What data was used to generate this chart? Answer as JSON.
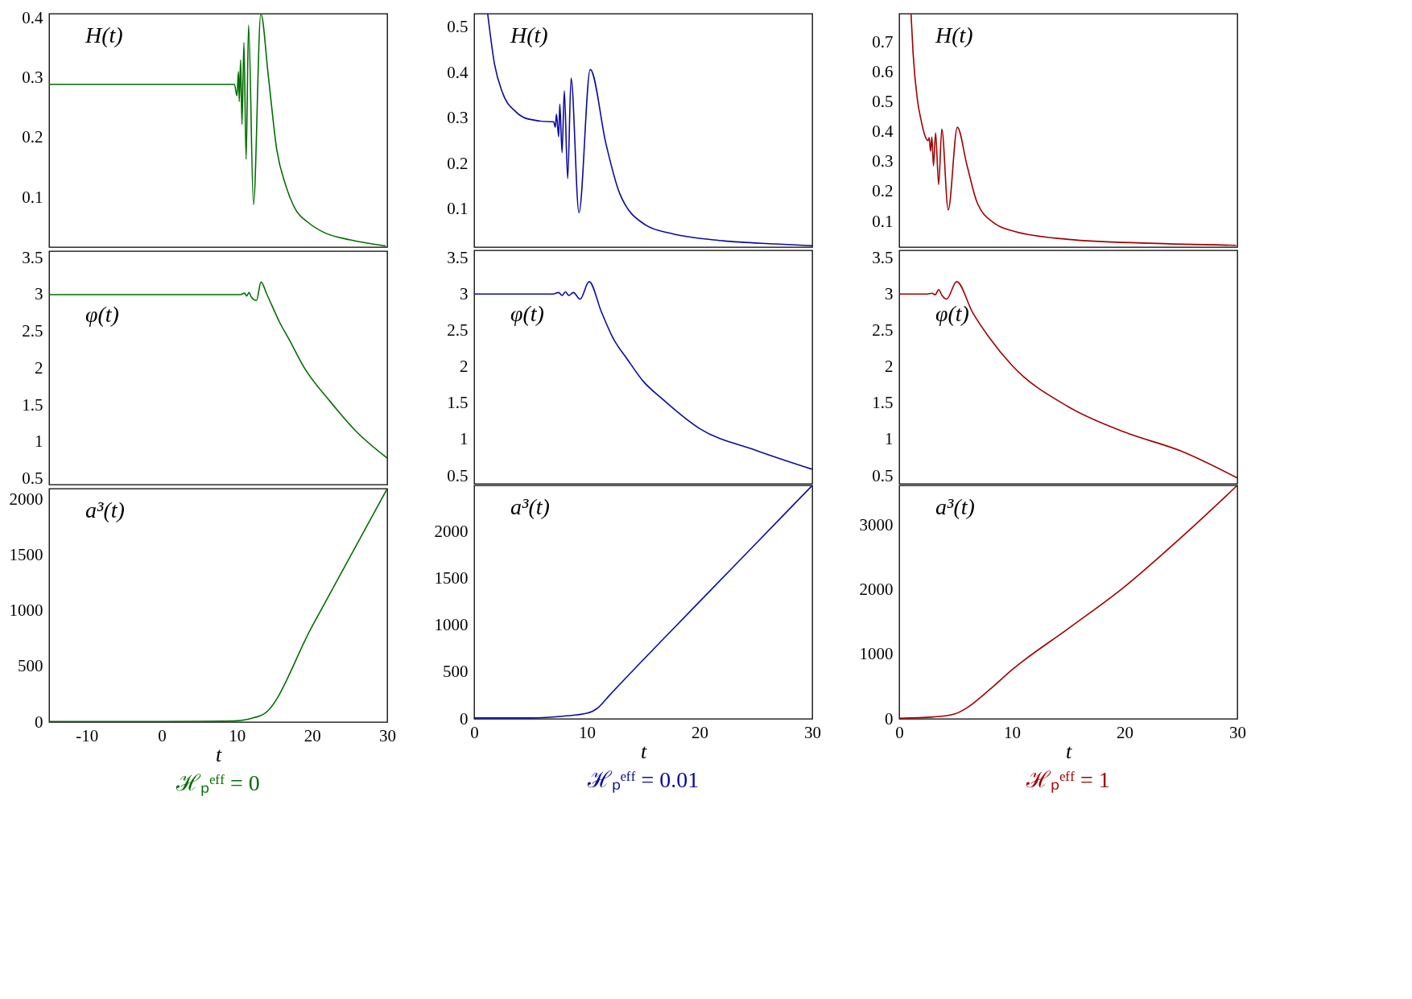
{
  "chart_data": [
    {
      "type": "line",
      "x": [
        -15,
        9.66,
        10.0,
        10.2,
        10.31,
        10.49,
        10.67,
        10.93,
        11.22,
        11.55,
        12.2,
        13.18,
        14.2,
        15.3,
        16.5,
        17.8,
        19.5,
        21.5,
        25.1,
        29.8
      ],
      "series": [
        {
          "color": "#006f00",
          "values": [
            0.289,
            0.289,
            0.27,
            0.31,
            0.26,
            0.33,
            0.222,
            0.359,
            0.164,
            0.388,
            0.088,
            0.407,
            0.3,
            0.18,
            0.12,
            0.08,
            0.058,
            0.042,
            0.029,
            0.019
          ]
        }
      ],
      "xlim": [
        -15,
        30
      ],
      "ylim": [
        0.017,
        0.407
      ],
      "yticks": [
        0.1,
        0.2,
        0.3,
        0.4
      ],
      "tick_labels": "y",
      "annotations": [
        "H(t)"
      ]
    },
    {
      "type": "line",
      "x": [
        1.2,
        1.8,
        2.5,
        3.7,
        4.8,
        6.8,
        7.05,
        7.2,
        7.3,
        7.5,
        7.6,
        7.8,
        8.0,
        8.3,
        8.6,
        9.3,
        10.3,
        11.7,
        12.9,
        15.2,
        17.5,
        22.1,
        26.7,
        30
      ],
      "series": [
        {
          "color": "#0a0aa0",
          "values": [
            0.53,
            0.42,
            0.357,
            0.314,
            0.298,
            0.292,
            0.292,
            0.28,
            0.309,
            0.259,
            0.331,
            0.224,
            0.36,
            0.167,
            0.388,
            0.092,
            0.407,
            0.243,
            0.135,
            0.065,
            0.046,
            0.03,
            0.023,
            0.019
          ]
        }
      ],
      "xlim": [
        0,
        30
      ],
      "ylim": [
        0.016,
        0.53
      ],
      "yticks": [
        0.1,
        0.2,
        0.3,
        0.4,
        0.5
      ],
      "tick_labels": "y",
      "annotations": [
        "H(t)"
      ]
    },
    {
      "type": "line",
      "x": [
        1.05,
        1.24,
        1.6,
        1.95,
        2.3,
        2.55,
        2.66,
        2.78,
        2.9,
        3.04,
        3.23,
        3.5,
        3.78,
        4.35,
        5.16,
        6.0,
        6.9,
        8.4,
        10.3,
        15,
        22.2,
        29.9
      ],
      "series": [
        {
          "color": "#a00000",
          "values": [
            0.794,
            0.658,
            0.511,
            0.437,
            0.385,
            0.37,
            0.38,
            0.335,
            0.382,
            0.286,
            0.396,
            0.223,
            0.409,
            0.139,
            0.415,
            0.29,
            0.165,
            0.095,
            0.066,
            0.04,
            0.027,
            0.02
          ]
        }
      ],
      "xlim": [
        0,
        30
      ],
      "ylim": [
        0.014,
        0.795
      ],
      "yticks": [
        0.1,
        0.2,
        0.3,
        0.4,
        0.5,
        0.6,
        0.7
      ],
      "tick_labels": "y",
      "annotations": [
        "H(t)"
      ]
    },
    {
      "type": "line",
      "x": [
        -15,
        10.5,
        11,
        11.3,
        11.6,
        11.9,
        12.6,
        13.2,
        14,
        15.7,
        17,
        19,
        22.4,
        25.8,
        30
      ],
      "series": [
        {
          "color": "#006f00",
          "values": [
            3,
            3,
            3.02,
            2.98,
            3.03,
            2.97,
            2.92,
            3.17,
            3.0,
            2.62,
            2.38,
            2.0,
            1.55,
            1.15,
            0.78
          ]
        }
      ],
      "xlim": [
        -15,
        30
      ],
      "ylim": [
        0.42,
        3.59
      ],
      "yticks": [
        0.5,
        1,
        1.5,
        2,
        2.5,
        3,
        3.5
      ],
      "tick_labels": "y",
      "annotations": [
        "φ(t)"
      ]
    },
    {
      "type": "line",
      "x": [
        0,
        7,
        7.5,
        7.8,
        8.1,
        8.4,
        8.8,
        9.4,
        10.2,
        11.3,
        12.3,
        13.6,
        15,
        16.6,
        20,
        25,
        30
      ],
      "series": [
        {
          "color": "#0a0aa0",
          "values": [
            3,
            3,
            3.02,
            2.98,
            3.03,
            2.98,
            3.02,
            2.93,
            3.17,
            2.75,
            2.4,
            2.1,
            1.8,
            1.57,
            1.15,
            0.85,
            0.59
          ]
        }
      ],
      "xlim": [
        0,
        30
      ],
      "ylim": [
        0.39,
        3.6
      ],
      "yticks": [
        0.5,
        1,
        1.5,
        2,
        2.5,
        3,
        3.5
      ],
      "tick_labels": "y",
      "annotations": [
        "φ(t)"
      ]
    },
    {
      "type": "line",
      "x": [
        0,
        2.5,
        2.9,
        3.2,
        3.5,
        3.8,
        4.2,
        5.1,
        6.5,
        8,
        10,
        15,
        20,
        25,
        30
      ],
      "series": [
        {
          "color": "#a00000",
          "values": [
            3,
            3,
            3.01,
            2.99,
            3.06,
            2.98,
            2.93,
            3.17,
            2.75,
            2.4,
            2.02,
            1.45,
            1.1,
            0.84,
            0.47
          ]
        }
      ],
      "xlim": [
        0,
        30
      ],
      "ylim": [
        0.39,
        3.6
      ],
      "yticks": [
        0.5,
        1,
        1.5,
        2,
        2.5,
        3,
        3.5
      ],
      "tick_labels": "y",
      "annotations": [
        "φ(t)"
      ]
    },
    {
      "type": "line",
      "x": [
        -15,
        0,
        8,
        10,
        11,
        12,
        13,
        13.5,
        20,
        25,
        30
      ],
      "series": [
        {
          "color": "#006f00",
          "values": [
            5,
            5,
            8,
            12,
            20,
            35,
            55,
            70,
            860,
            1480,
            2100
          ]
        }
      ],
      "xlim": [
        -15,
        30
      ],
      "ylim": [
        0,
        2100
      ],
      "xticks": [
        -10,
        0,
        10,
        20,
        30
      ],
      "yticks": [
        0,
        500,
        1000,
        1500,
        2000
      ],
      "xlabel": "t",
      "title": "ℋₚᵉᶠᶠ = 0",
      "annotations": [
        "a³(t)"
      ]
    },
    {
      "type": "line",
      "x": [
        0,
        5,
        8,
        10,
        11,
        12,
        20,
        25,
        30
      ],
      "series": [
        {
          "color": "#0a0aa0",
          "values": [
            10,
            10,
            30,
            60,
            120,
            250,
            1250,
            1870,
            2490
          ]
        }
      ],
      "xlim": [
        0,
        30
      ],
      "ylim": [
        0,
        2490
      ],
      "xticks": [
        0,
        10,
        20,
        30
      ],
      "yticks": [
        0,
        500,
        1000,
        1500,
        2000
      ],
      "xlabel": "t",
      "title": "ℋₚᵉᶠᶠ = 0.01",
      "annotations": [
        "a³(t)"
      ]
    },
    {
      "type": "line",
      "x": [
        0,
        3,
        4.5,
        5,
        6,
        8,
        10,
        15,
        20,
        25,
        30
      ],
      "series": [
        {
          "color": "#a00000",
          "values": [
            10,
            30,
            60,
            80,
            170,
            450,
            760,
            1400,
            2050,
            2810,
            3620
          ]
        }
      ],
      "xlim": [
        0,
        30
      ],
      "ylim": [
        0,
        3620
      ],
      "xticks": [
        0,
        10,
        20,
        30
      ],
      "yticks": [
        0,
        1000,
        2000,
        3000
      ],
      "xlabel": "t",
      "title": "ℋₚᵉᶠᶠ = 1",
      "annotations": [
        "a³(t)"
      ]
    }
  ]
}
